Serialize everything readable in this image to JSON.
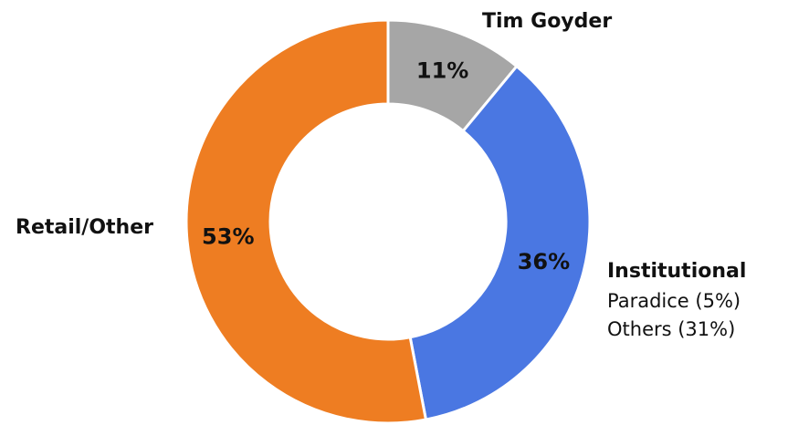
{
  "chart_data": {
    "type": "pie",
    "style": "donut",
    "start_angle_deg": 0,
    "direction": "clockwise",
    "slices": [
      {
        "label": "Tim Goyder",
        "value": 11,
        "value_label": "11%",
        "color": "#A6A6A6"
      },
      {
        "label": "Institutional",
        "value": 36,
        "value_label": "36%",
        "color": "#4A77E2"
      },
      {
        "label": "Retail/Other",
        "value": 53,
        "value_label": "53%",
        "color": "#EE7D22"
      }
    ],
    "annotations": {
      "institutional_breakdown": [
        "Paradice (5%)",
        "Others (31%)"
      ]
    },
    "legend": "none",
    "title": ""
  }
}
